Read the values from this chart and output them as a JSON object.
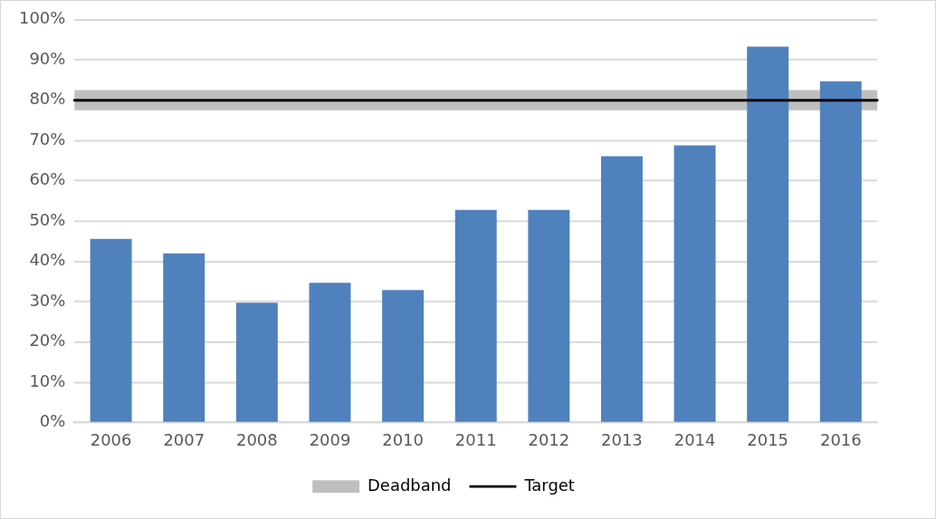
{
  "chart_data": {
    "type": "bar",
    "categories": [
      "2006",
      "2007",
      "2008",
      "2009",
      "2010",
      "2011",
      "2012",
      "2013",
      "2014",
      "2015",
      "2016"
    ],
    "values": [
      45.6,
      42.0,
      29.8,
      34.7,
      32.9,
      52.8,
      52.8,
      66.1,
      68.8,
      93.3,
      84.7
    ],
    "color": "#4f81bd",
    "ylim": [
      0,
      100
    ],
    "yticks": [
      {
        "value": 0,
        "label": "0%"
      },
      {
        "value": 10,
        "label": "10%"
      },
      {
        "value": 20,
        "label": "20%"
      },
      {
        "value": 30,
        "label": "30%"
      },
      {
        "value": 40,
        "label": "40%"
      },
      {
        "value": 50,
        "label": "50%"
      },
      {
        "value": 60,
        "label": "60%"
      },
      {
        "value": 70,
        "label": "70%"
      },
      {
        "value": 80,
        "label": "80%"
      },
      {
        "value": 90,
        "label": "90%"
      },
      {
        "value": 100,
        "label": "100%"
      }
    ],
    "grid": "y",
    "legend": "bottom",
    "bands": [
      {
        "axis": "y",
        "from": 77.5,
        "to": 82.5,
        "label": "Deadband",
        "color": "#bfbfbf"
      }
    ],
    "ref_lines": [
      {
        "axis": "y",
        "value": 80,
        "label": "Target",
        "color": "#000000",
        "line_style": "solid"
      }
    ]
  }
}
